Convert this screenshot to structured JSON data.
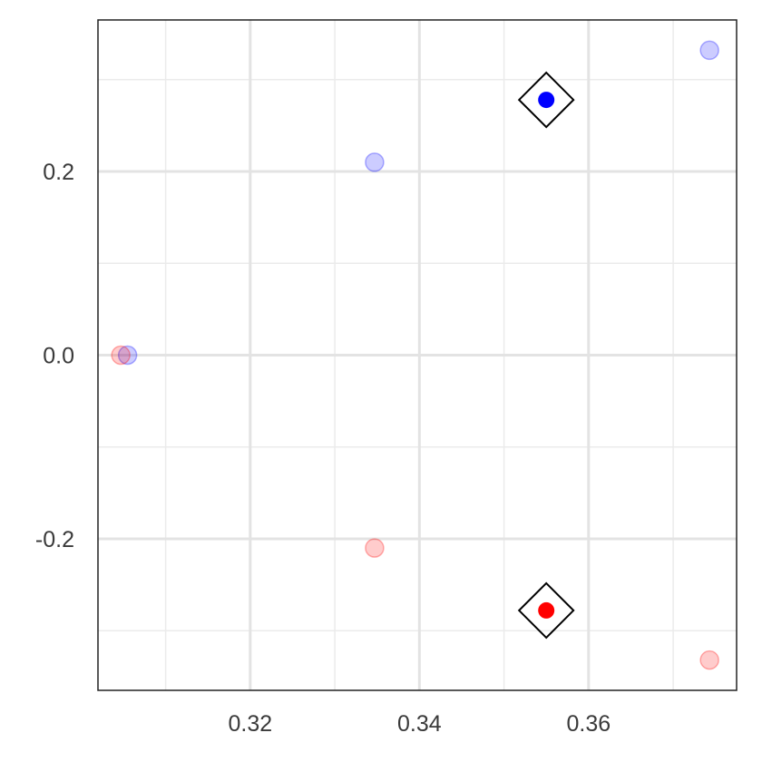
{
  "chart_data": {
    "type": "scatter",
    "title": "",
    "xlabel": "",
    "ylabel": "",
    "xlim": [
      0.302,
      0.3775
    ],
    "ylim": [
      -0.365,
      0.365
    ],
    "x_major_ticks": [
      0.32,
      0.34,
      0.36
    ],
    "x_minor_ticks": [
      0.31,
      0.33,
      0.35,
      0.37
    ],
    "y_major_ticks": [
      -0.2,
      0.0,
      0.2
    ],
    "y_minor_ticks": [
      -0.3,
      -0.1,
      0.1,
      0.3
    ],
    "x_tick_labels": [
      "0.32",
      "0.34",
      "0.36"
    ],
    "y_tick_labels": [
      "-0.2",
      "0.0",
      "0.2"
    ],
    "grid": true,
    "legend": "none",
    "series": [
      {
        "color": "#0000ff",
        "opacity": 0.2,
        "marker": "circle",
        "points": [
          {
            "x": 0.3055,
            "y": 0.0
          },
          {
            "x": 0.3347,
            "y": 0.21
          },
          {
            "x": 0.3743,
            "y": 0.332
          }
        ]
      },
      {
        "color": "#ff0000",
        "opacity": 0.2,
        "marker": "circle",
        "points": [
          {
            "x": 0.3047,
            "y": 0.0
          },
          {
            "x": 0.3347,
            "y": -0.21
          },
          {
            "x": 0.3743,
            "y": -0.332
          }
        ]
      },
      {
        "color": "#0000ff",
        "opacity": 1.0,
        "marker": "circle-in-diamond",
        "points": [
          {
            "x": 0.355,
            "y": 0.278
          }
        ]
      },
      {
        "color": "#ff0000",
        "opacity": 1.0,
        "marker": "circle-in-diamond",
        "points": [
          {
            "x": 0.355,
            "y": -0.278
          }
        ]
      }
    ]
  }
}
